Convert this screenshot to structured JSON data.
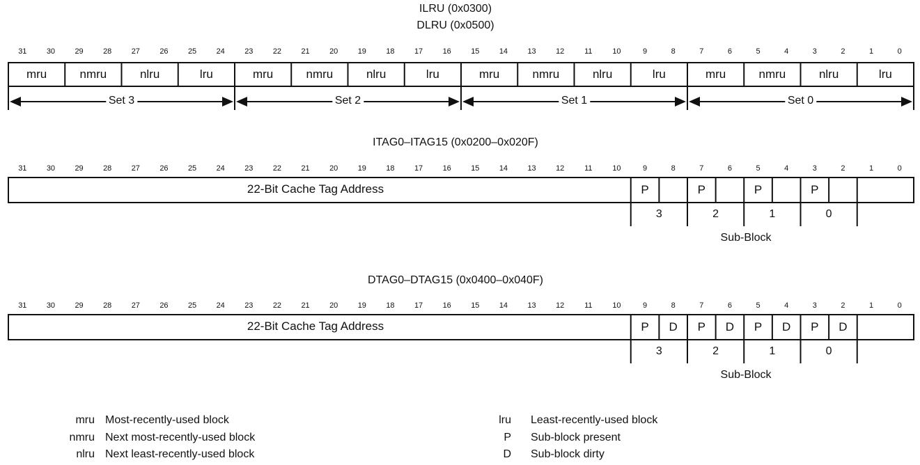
{
  "lru_register": {
    "title_line1": "ILRU (0x0300)",
    "title_line2": "DLRU (0x0500)",
    "bit_numbers": [
      "31",
      "30",
      "29",
      "28",
      "27",
      "26",
      "25",
      "24",
      "23",
      "22",
      "21",
      "20",
      "19",
      "18",
      "17",
      "16",
      "15",
      "14",
      "13",
      "12",
      "11",
      "10",
      "9",
      "8",
      "7",
      "6",
      "5",
      "4",
      "3",
      "2",
      "1",
      "0"
    ],
    "fields": [
      "mru",
      "nmru",
      "nlru",
      "lru",
      "mru",
      "nmru",
      "nlru",
      "lru",
      "mru",
      "nmru",
      "nlru",
      "lru",
      "mru",
      "nmru",
      "nlru",
      "lru"
    ],
    "sets": [
      "Set 3",
      "Set 2",
      "Set 1",
      "Set 0"
    ]
  },
  "itag_register": {
    "title": "ITAG0–ITAG15 (0x0200–0x020F)",
    "bit_numbers": [
      "31",
      "30",
      "29",
      "28",
      "27",
      "26",
      "25",
      "24",
      "23",
      "22",
      "21",
      "20",
      "19",
      "18",
      "17",
      "16",
      "15",
      "14",
      "13",
      "12",
      "11",
      "10",
      "9",
      "8",
      "7",
      "6",
      "5",
      "4",
      "3",
      "2",
      "1",
      "0"
    ],
    "tag_field": "22-Bit Cache Tag Address",
    "bit_fields": [
      "P",
      "",
      "P",
      "",
      "P",
      "",
      "P",
      ""
    ],
    "sub_blocks": [
      "3",
      "2",
      "1",
      "0"
    ],
    "sub_block_label": "Sub-Block"
  },
  "dtag_register": {
    "title": "DTAG0–DTAG15 (0x0400–0x040F)",
    "bit_numbers": [
      "31",
      "30",
      "29",
      "28",
      "27",
      "26",
      "25",
      "24",
      "23",
      "22",
      "21",
      "20",
      "19",
      "18",
      "17",
      "16",
      "15",
      "14",
      "13",
      "12",
      "11",
      "10",
      "9",
      "8",
      "7",
      "6",
      "5",
      "4",
      "3",
      "2",
      "1",
      "0"
    ],
    "tag_field": "22-Bit Cache Tag Address",
    "bit_fields": [
      "P",
      "D",
      "P",
      "D",
      "P",
      "D",
      "P",
      "D"
    ],
    "sub_blocks": [
      "3",
      "2",
      "1",
      "0"
    ],
    "sub_block_label": "Sub-Block"
  },
  "legend": [
    {
      "abbr": "mru",
      "desc": "Most-recently-used block"
    },
    {
      "abbr": "nmru",
      "desc": "Next most-recently-used block"
    },
    {
      "abbr": "nlru",
      "desc": "Next least-recently-used block"
    },
    {
      "abbr": "lru",
      "desc": "Least-recently-used block"
    },
    {
      "abbr": "P",
      "desc": "Sub-block present"
    },
    {
      "abbr": "D",
      "desc": "Sub-block dirty"
    }
  ]
}
